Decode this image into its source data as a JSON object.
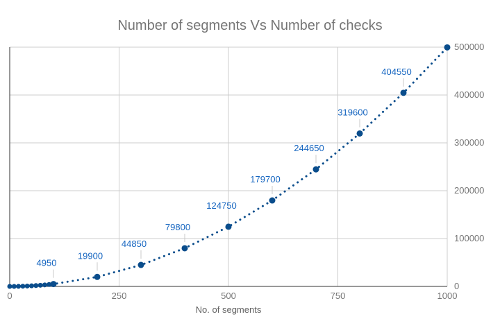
{
  "chart_data": {
    "type": "scatter",
    "title": "Number of segments Vs Number of checks",
    "xlabel": "No. of segments",
    "ylabel": "",
    "xlim": [
      0,
      1000
    ],
    "ylim": [
      0,
      500000
    ],
    "grid": true,
    "legend_position": "none",
    "x_ticks": [
      {
        "v": 0,
        "label": "0"
      },
      {
        "v": 250,
        "label": "250"
      },
      {
        "v": 500,
        "label": "500"
      },
      {
        "v": 750,
        "label": "750"
      },
      {
        "v": 1000,
        "label": "1000"
      }
    ],
    "y_ticks": [
      {
        "v": 0,
        "label": "0"
      },
      {
        "v": 100000,
        "label": "100000"
      },
      {
        "v": 200000,
        "label": "200000"
      },
      {
        "v": 300000,
        "label": "300000"
      },
      {
        "v": 400000,
        "label": "400000"
      },
      {
        "v": 500000,
        "label": "500000"
      }
    ],
    "cluster_points": [
      {
        "x": 0,
        "y": 0
      },
      {
        "x": 10,
        "y": 45
      },
      {
        "x": 20,
        "y": 190
      },
      {
        "x": 30,
        "y": 435
      },
      {
        "x": 40,
        "y": 780
      },
      {
        "x": 50,
        "y": 1225
      },
      {
        "x": 60,
        "y": 1770
      },
      {
        "x": 70,
        "y": 2415
      },
      {
        "x": 80,
        "y": 3160
      },
      {
        "x": 90,
        "y": 4005
      }
    ],
    "points": [
      {
        "x": 100,
        "y": 4950,
        "label": "4950"
      },
      {
        "x": 200,
        "y": 19900,
        "label": "19900"
      },
      {
        "x": 300,
        "y": 44850,
        "label": "44850"
      },
      {
        "x": 400,
        "y": 79800,
        "label": "79800"
      },
      {
        "x": 500,
        "y": 124750,
        "label": "124750"
      },
      {
        "x": 600,
        "y": 179700,
        "label": "179700"
      },
      {
        "x": 700,
        "y": 244650,
        "label": "244650"
      },
      {
        "x": 800,
        "y": 319600,
        "label": "319600"
      },
      {
        "x": 900,
        "y": 404550,
        "label": "404550"
      },
      {
        "x": 1000,
        "y": 499500,
        "label": ""
      }
    ],
    "colors": {
      "series": "#0a4d8c",
      "annotation": "#1565c0",
      "grid": "#cccccc",
      "baseline": "#333333",
      "tick": "#757575",
      "title": "#757575",
      "stem": "#c9c9c9"
    }
  }
}
